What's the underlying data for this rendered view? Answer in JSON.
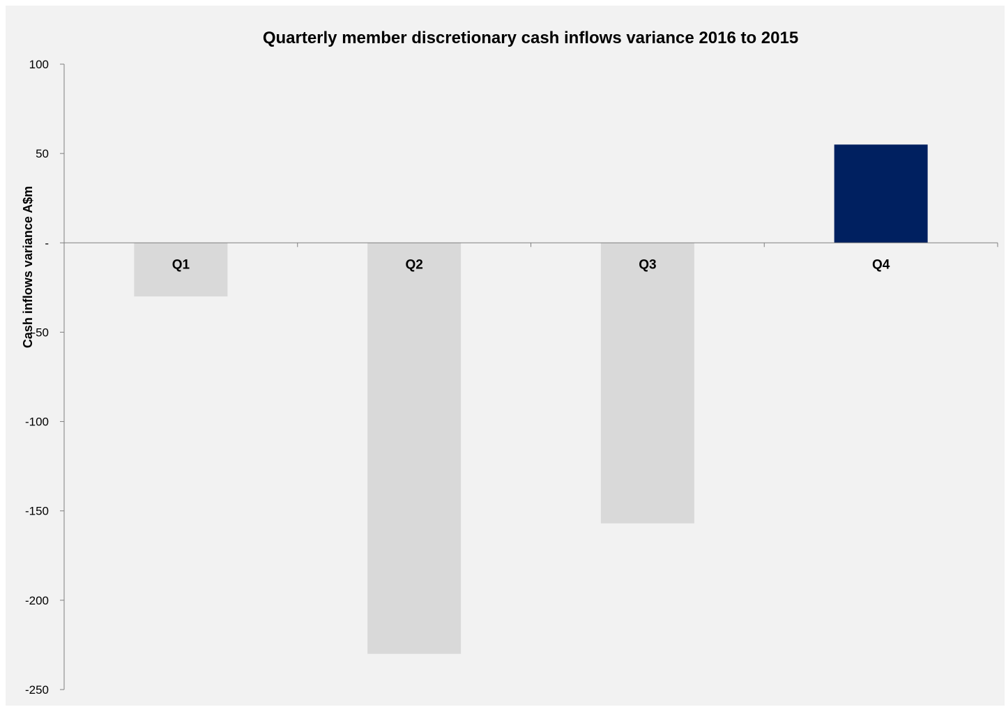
{
  "chart_data": {
    "type": "bar",
    "title": "Quarterly member discretionary cash inflows variance 2016 to 2015",
    "ylabel": "Cash inflows variance A$m",
    "xlabel": "",
    "categories": [
      "Q1",
      "Q2",
      "Q3",
      "Q4"
    ],
    "values": [
      -30,
      -230,
      -157,
      55
    ],
    "bar_colors": [
      "#d9d9d9",
      "#d9d9d9",
      "#d9d9d9",
      "#002060"
    ],
    "ylim": [
      -250,
      100
    ],
    "yticks": [
      100,
      50,
      0,
      -50,
      -100,
      -150,
      -200,
      -250
    ],
    "ytick_labels": [
      "100",
      "50",
      "-",
      "-50",
      "-100",
      "-150",
      "-200",
      "-250"
    ],
    "grid": false,
    "legend": "none"
  }
}
